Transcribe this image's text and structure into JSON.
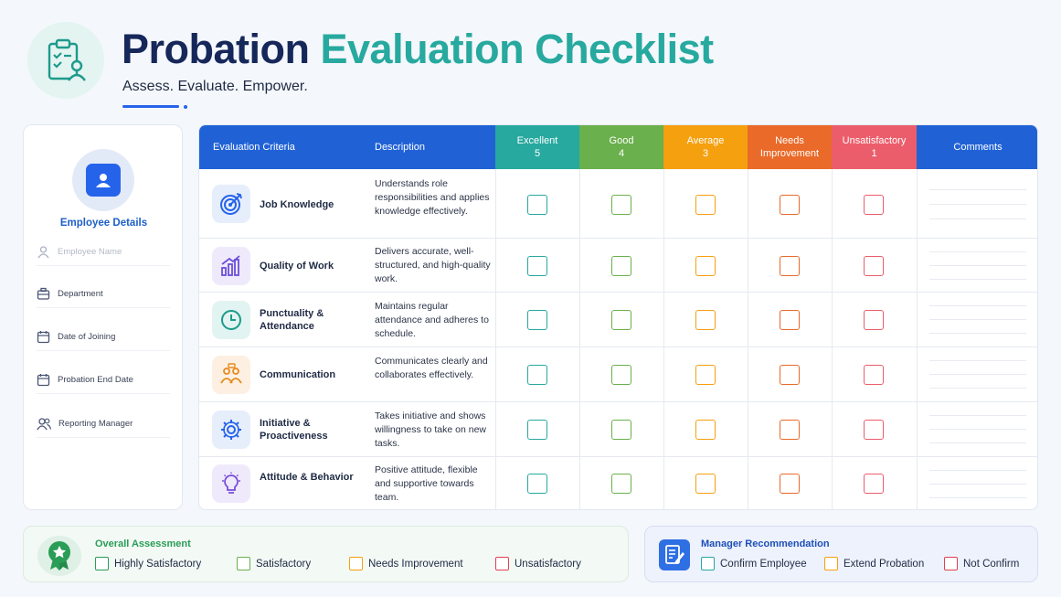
{
  "header": {
    "title_part1": "Probation",
    "title_part2": "Evaluation Checklist",
    "subtitle": "Assess. Evaluate. Empower.",
    "logo_icon": "clipboard-user-icon"
  },
  "sidebar": {
    "title": "Employee Details",
    "avatar_icon": "employee-card-icon",
    "fields": [
      {
        "label": "Employee Name",
        "icon": "user-icon"
      },
      {
        "label": "Department",
        "icon": "briefcase-icon"
      },
      {
        "label": "Date of Joining",
        "icon": "calendar-icon"
      },
      {
        "label": "Probation End Date",
        "icon": "calendar-icon"
      },
      {
        "label": "Reporting Manager",
        "icon": "users-icon"
      }
    ]
  },
  "table": {
    "headers": {
      "criteria": "Evaluation Criteria",
      "description": "Description",
      "comments": "Comments"
    },
    "ratings": [
      {
        "label": "Excellent",
        "value": "5",
        "color": "#27a99f"
      },
      {
        "label": "Good",
        "value": "4",
        "color": "#6ab04c"
      },
      {
        "label": "Average",
        "value": "3",
        "color": "#f5a00f"
      },
      {
        "label": "Needs Improvement",
        "value": "",
        "color": "#ea6a29"
      },
      {
        "label": "Unsatisfactory",
        "value": "1",
        "color": "#ec5d6b"
      }
    ],
    "header_color": "#2062d6",
    "rows": [
      {
        "name": "Job Knowledge",
        "icon": "target-icon",
        "icon_color": "#2563eb",
        "icon_bg": "#e6eefb",
        "description": "Understands role responsibilities and applies knowledge effectively."
      },
      {
        "name": "Quality of Work",
        "icon": "bar-chart-icon",
        "icon_color": "#6b4fd8",
        "icon_bg": "#efeafb",
        "description": "Delivers accurate, well-structured, and high-quality work."
      },
      {
        "name": "Punctuality & Attendance",
        "icon": "clock-icon",
        "icon_color": "#1e9a8c",
        "icon_bg": "#e2f4f1",
        "description": "Maintains regular attendance and adheres to schedule."
      },
      {
        "name": "Communication",
        "icon": "people-chat-icon",
        "icon_color": "#e88a1e",
        "icon_bg": "#fdf0e2",
        "description": "Communicates clearly and collaborates effectively."
      },
      {
        "name": "Initiative & Proactiveness",
        "icon": "gear-icon",
        "icon_color": "#2563eb",
        "icon_bg": "#e6eefb",
        "description": "Takes initiative and shows willingness to take on new tasks."
      },
      {
        "name": "Attitude & Behavior",
        "icon": "lightbulb-icon",
        "icon_color": "#7a4fd8",
        "icon_bg": "#efeafb",
        "description": "Positive attitude, flexible and supportive towards team."
      }
    ]
  },
  "overall": {
    "title": "Overall Assessment",
    "icon": "award-badge-icon",
    "options": [
      {
        "label": "Highly Satisfactory",
        "color": "#2a9d57"
      },
      {
        "label": "Satisfactory",
        "color": "#6ab04c"
      },
      {
        "label": "Needs Improvement",
        "color": "#f5a00f"
      },
      {
        "label": "Unsatisfactory",
        "color": "#e0404f"
      }
    ]
  },
  "manager": {
    "title": "Manager Recommendation",
    "icon": "document-edit-icon",
    "options": [
      {
        "label": "Confirm Employee",
        "color": "#27a99f"
      },
      {
        "label": "Extend Probation",
        "color": "#f5a00f"
      },
      {
        "label": "Not Confirm",
        "color": "#e0404f"
      }
    ]
  }
}
